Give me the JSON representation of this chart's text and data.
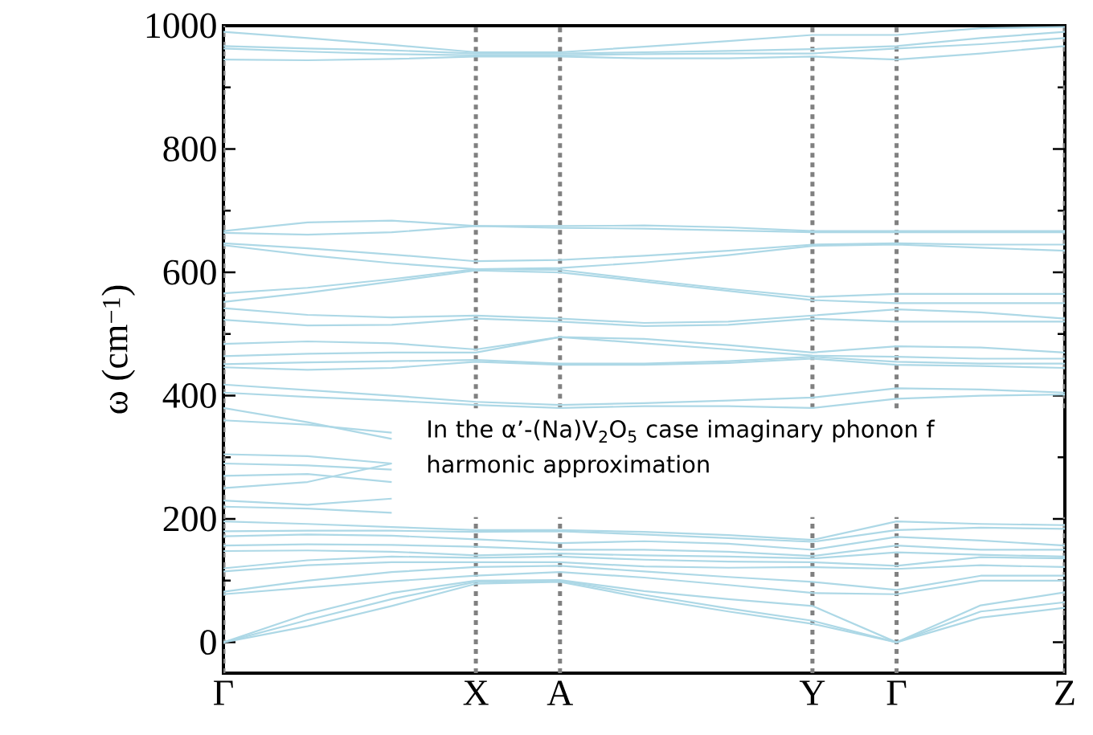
{
  "chart_data": {
    "type": "line",
    "ylabel": "ω (cm$^{−1}$)",
    "categories": [
      "Γ",
      null,
      null,
      "X",
      "A",
      null,
      null,
      "Y",
      "Γ",
      null,
      "Z"
    ],
    "ylim": [
      -50,
      1000
    ],
    "yticks": [
      0,
      {
        "value": 100,
        "label": null
      },
      200,
      {
        "value": 300,
        "label": null
      },
      400,
      {
        "value": 500,
        "label": null
      },
      600,
      {
        "value": 700,
        "label": null
      },
      800,
      {
        "value": 900,
        "label": null
      },
      1000
    ],
    "grid": "x",
    "marker": "none",
    "line_style": "solid",
    "annotations": [
      "In the α’-(Na)V$_{2}$O$_{5}$ case imaginary phonon f",
      "harmonic approximation"
    ],
    "series": [
      {
        "color": "#add8e6",
        "values": [
          990,
          980,
          969,
          957,
          957,
          966,
          975,
          985,
          985,
          996,
          998
        ]
      },
      {
        "color": "#add8e6",
        "values": [
          967,
          963,
          960,
          955,
          955,
          957,
          959,
          962,
          967,
          980,
          990
        ]
      },
      {
        "color": "#add8e6",
        "values": [
          963,
          958,
          954,
          952,
          952,
          954,
          955,
          955,
          963,
          970,
          980
        ]
      },
      {
        "color": "#add8e6",
        "values": [
          945,
          944,
          946,
          950,
          950,
          947,
          947,
          950,
          945,
          955,
          967
        ]
      },
      {
        "color": "#add8e6",
        "values": [
          667,
          681,
          684,
          675,
          675,
          676,
          673,
          667,
          667,
          667,
          667
        ]
      },
      {
        "color": "#add8e6",
        "values": [
          664,
          661,
          665,
          675,
          672,
          671,
          668,
          665,
          665,
          665,
          665
        ]
      },
      {
        "color": "#add8e6",
        "values": [
          647,
          639,
          629,
          618,
          620,
          627,
          635,
          645,
          647,
          645,
          645
        ]
      },
      {
        "color": "#add8e6",
        "values": [
          644,
          628,
          615,
          605,
          607,
          616,
          628,
          643,
          645,
          640,
          635
        ]
      },
      {
        "color": "#add8e6",
        "values": [
          566,
          575,
          589,
          605,
          604,
          588,
          573,
          560,
          565,
          565,
          565
        ]
      },
      {
        "color": "#add8e6",
        "values": [
          552,
          567,
          585,
          603,
          600,
          585,
          570,
          555,
          550,
          550,
          550
        ]
      },
      {
        "color": "#add8e6",
        "values": [
          542,
          531,
          527,
          530,
          525,
          518,
          520,
          530,
          540,
          535,
          525
        ]
      },
      {
        "color": "#add8e6",
        "values": [
          523,
          514,
          515,
          525,
          520,
          513,
          515,
          525,
          520,
          520,
          520
        ]
      },
      {
        "color": "#add8e6",
        "values": [
          484,
          488,
          485,
          475,
          495,
          492,
          482,
          470,
          480,
          478,
          470
        ]
      },
      {
        "color": "#add8e6",
        "values": [
          464,
          468,
          470,
          470,
          495,
          485,
          475,
          465,
          463,
          460,
          460
        ]
      },
      {
        "color": "#add8e6",
        "values": [
          451,
          454,
          456,
          458,
          452,
          452,
          456,
          463,
          455,
          452,
          452
        ]
      },
      {
        "color": "#add8e6",
        "values": [
          446,
          442,
          445,
          455,
          450,
          450,
          453,
          460,
          450,
          448,
          445
        ]
      },
      {
        "color": "#add8e6",
        "values": [
          418,
          409,
          400,
          390,
          385,
          388,
          392,
          397,
          412,
          410,
          405
        ]
      },
      {
        "color": "#add8e6",
        "values": [
          405,
          398,
          392,
          385,
          380,
          383,
          383,
          380,
          395,
          400,
          402
        ]
      },
      {
        "color": "#add8e6",
        "values": [
          380,
          357,
          330,
          null,
          null,
          null,
          null,
          null,
          null,
          null,
          null
        ]
      },
      {
        "color": "#add8e6",
        "values": [
          360,
          353,
          340,
          null,
          null,
          null,
          null,
          null,
          null,
          null,
          null
        ]
      },
      {
        "color": "#add8e6",
        "values": [
          305,
          302,
          290,
          null,
          null,
          null,
          null,
          null,
          null,
          null,
          null
        ]
      },
      {
        "color": "#add8e6",
        "values": [
          290,
          287,
          280,
          null,
          null,
          null,
          null,
          null,
          null,
          null,
          null
        ]
      },
      {
        "color": "#add8e6",
        "values": [
          270,
          273,
          260,
          null,
          null,
          null,
          null,
          null,
          null,
          null,
          null
        ]
      },
      {
        "color": "#add8e6",
        "values": [
          250,
          260,
          290,
          null,
          null,
          null,
          null,
          null,
          null,
          null,
          null
        ]
      },
      {
        "color": "#add8e6",
        "values": [
          230,
          223,
          233,
          null,
          null,
          null,
          null,
          null,
          null,
          null,
          null
        ]
      },
      {
        "color": "#add8e6",
        "values": [
          220,
          217,
          210,
          null,
          null,
          null,
          null,
          null,
          null,
          null,
          null
        ]
      },
      {
        "color": "#add8e6",
        "values": [
          196,
          192,
          187,
          182,
          182,
          179,
          174,
          166,
          196,
          192,
          190
        ]
      },
      {
        "color": "#add8e6",
        "values": [
          180,
          181,
          181,
          179,
          180,
          175,
          169,
          163,
          182,
          186,
          184
        ]
      },
      {
        "color": "#add8e6",
        "values": [
          172,
          175,
          173,
          167,
          161,
          164,
          160,
          150,
          171,
          165,
          157
        ]
      },
      {
        "color": "#add8e6",
        "values": [
          157,
          159,
          158,
          155,
          150,
          150,
          147,
          140,
          157,
          150,
          150
        ]
      },
      {
        "color": "#add8e6",
        "values": [
          148,
          149,
          147,
          141,
          144,
          141,
          139,
          136,
          146,
          142,
          139
        ]
      },
      {
        "color": "#add8e6",
        "values": [
          120,
          133,
          139,
          137,
          139,
          134,
          131,
          130,
          124,
          138,
          136
        ]
      },
      {
        "color": "#add8e6",
        "values": [
          115,
          125,
          130,
          130,
          130,
          123,
          121,
          122,
          119,
          125,
          122
        ]
      },
      {
        "color": "#add8e6",
        "values": [
          82,
          100,
          114,
          122,
          124,
          115,
          106,
          98,
          85,
          108,
          108
        ]
      },
      {
        "color": "#add8e6",
        "values": [
          78,
          89,
          99,
          108,
          114,
          105,
          93,
          80,
          78,
          100,
          100
        ]
      },
      {
        "color": "#add8e6",
        "values": [
          0,
          46,
          80,
          100,
          101,
          83,
          70,
          59,
          0,
          60,
          81
        ]
      },
      {
        "color": "#add8e6",
        "values": [
          0,
          36,
          70,
          98,
          100,
          77,
          55,
          35,
          0,
          50,
          65
        ]
      },
      {
        "color": "#add8e6",
        "values": [
          0,
          26,
          59,
          95,
          98,
          72,
          50,
          30,
          0,
          40,
          56
        ]
      }
    ]
  }
}
